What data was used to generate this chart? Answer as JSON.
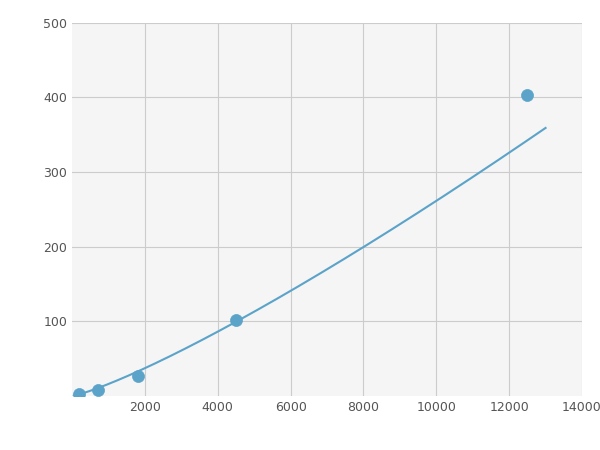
{
  "x_points": [
    200,
    700,
    1800,
    4500,
    12500
  ],
  "y_points": [
    3,
    8,
    27,
    102,
    403
  ],
  "line_color": "#5ba3c9",
  "marker_color": "#5ba3c9",
  "marker_size": 5,
  "line_width": 1.5,
  "xlim": [
    0,
    14000
  ],
  "ylim": [
    0,
    500
  ],
  "xticks": [
    2000,
    4000,
    6000,
    8000,
    10000,
    12000,
    14000
  ],
  "yticks": [
    100,
    200,
    300,
    400,
    500
  ],
  "grid_color": "#cccccc",
  "background_color": "#f5f5f5",
  "figure_bg": "#ffffff"
}
